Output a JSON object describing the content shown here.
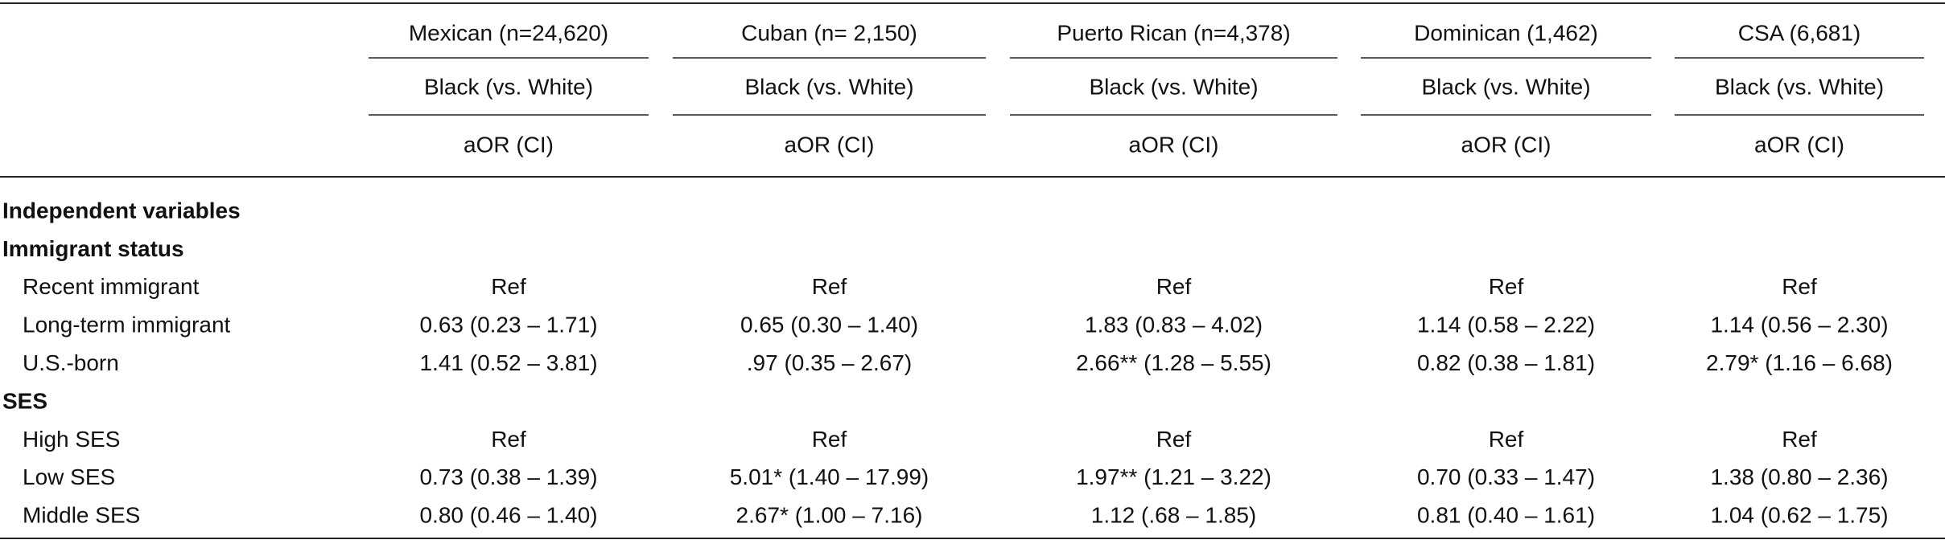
{
  "table": {
    "columns": [
      {
        "group": "Mexican (n=24,620)",
        "comparison": "Black (vs. White)",
        "measure": "aOR (CI)"
      },
      {
        "group": "Cuban (n= 2,150)",
        "comparison": "Black (vs. White)",
        "measure": "aOR (CI)"
      },
      {
        "group": "Puerto Rican (n=4,378)",
        "comparison": "Black (vs. White)",
        "measure": "aOR (CI)"
      },
      {
        "group": "Dominican (1,462)",
        "comparison": "Black (vs. White)",
        "measure": "aOR (CI)"
      },
      {
        "group": "CSA (6,681)",
        "comparison": "Black (vs. White)",
        "measure": "aOR (CI)"
      }
    ],
    "heading": "Independent variables",
    "sections": [
      {
        "title": "Immigrant status",
        "rows": [
          {
            "label": "Recent immigrant",
            "cells": [
              "Ref",
              "Ref",
              "Ref",
              "Ref",
              "Ref"
            ]
          },
          {
            "label": "Long-term immigrant",
            "cells": [
              "0.63 (0.23 – 1.71)",
              "0.65 (0.30 – 1.40)",
              "1.83 (0.83 – 4.02)",
              "1.14 (0.58 – 2.22)",
              "1.14 (0.56 – 2.30)"
            ]
          },
          {
            "label": "U.S.-born",
            "cells": [
              "1.41 (0.52 – 3.81)",
              ".97 (0.35 – 2.67)",
              "2.66** (1.28 – 5.55)",
              "0.82 (0.38 – 1.81)",
              "2.79* (1.16 – 6.68)"
            ]
          }
        ]
      },
      {
        "title": "SES",
        "rows": [
          {
            "label": "High SES",
            "cells": [
              "Ref",
              "Ref",
              "Ref",
              "Ref",
              "Ref"
            ]
          },
          {
            "label": "Low SES",
            "cells": [
              "0.73 (0.38 – 1.39)",
              "5.01* (1.40 – 17.99)",
              "1.97** (1.21 – 3.22)",
              "0.70 (0.33 – 1.47)",
              "1.38 (0.80 – 2.36)"
            ]
          },
          {
            "label": "Middle SES",
            "cells": [
              "0.80 (0.46 – 1.40)",
              "2.67* (1.00 – 7.16)",
              "1.12 (.68 – 1.85)",
              "0.81 (0.40 – 1.61)",
              "1.04 (0.62 – 1.75)"
            ]
          }
        ]
      }
    ]
  }
}
